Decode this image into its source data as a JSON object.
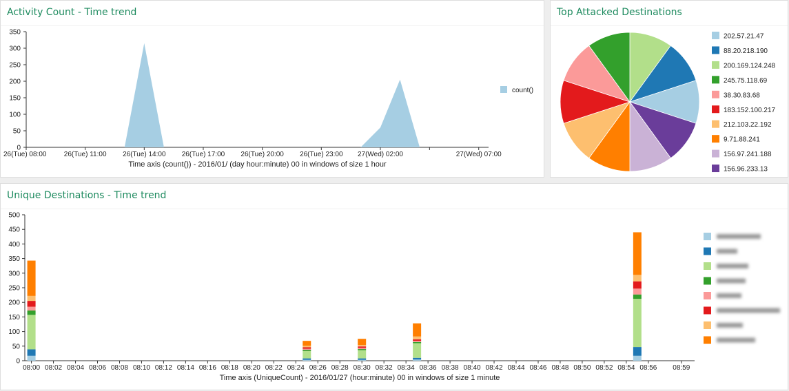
{
  "panels": {
    "activity_title": "Activity Count - Time trend",
    "destinations_title": "Top Attacked Destinations",
    "unique_title": "Unique Destinations - Time trend"
  },
  "chart_data": [
    {
      "type": "area",
      "title": "Activity Count - Time trend",
      "xlabel": "Time axis (count()) - 2016/01/ (day hour:minute) 00 in windows of size 1 hour",
      "ylabel": "",
      "ylim": [
        0,
        350
      ],
      "yticks": [
        0,
        50,
        100,
        150,
        200,
        250,
        300,
        350
      ],
      "x_tick_labels": [
        "26(Tue) 08:00",
        "26(Tue) 11:00",
        "26(Tue) 14:00",
        "26(Tue) 17:00",
        "26(Tue) 20:00",
        "26(Tue) 23:00",
        "27(Wed) 02:00",
        "27(Wed) 07:00"
      ],
      "x_tick_hours": [
        0,
        3,
        6,
        9,
        12,
        15,
        18,
        23
      ],
      "xlim_hours": [
        0,
        23.5
      ],
      "series": [
        {
          "name": "count()",
          "color": "#a6cee3",
          "x_hours": [
            0,
            5,
            6,
            7,
            17,
            18,
            19,
            20,
            23.5
          ],
          "values": [
            0,
            0,
            315,
            0,
            0,
            60,
            205,
            0,
            0
          ]
        }
      ],
      "legend_position": "right"
    },
    {
      "type": "pie",
      "title": "Top Attacked Destinations",
      "labels": [
        "202.57.21.47",
        "88.20.218.190",
        "200.169.124.248",
        "245.75.118.69",
        "38.30.83.68",
        "183.152.100.217",
        "212.103.22.192",
        "9.71.88.241",
        "156.97.241.188",
        "156.96.233.13"
      ],
      "values": [
        10,
        10,
        10,
        10,
        10,
        10,
        10,
        10,
        10,
        10
      ],
      "colors": [
        "#a6cee3",
        "#1f78b4",
        "#b2df8a",
        "#33a02c",
        "#fb9a99",
        "#e31a1c",
        "#fdbf6f",
        "#ff7f00",
        "#cab2d6",
        "#6a3d9a"
      ],
      "slice_order": [
        "200.169.124.248",
        "88.20.218.190",
        "202.57.21.47",
        "156.96.233.13",
        "156.97.241.188",
        "9.71.88.241",
        "212.103.22.192",
        "183.152.100.217",
        "38.30.83.68",
        "245.75.118.69"
      ],
      "legend_position": "right"
    },
    {
      "type": "bar",
      "stacked": true,
      "title": "Unique Destinations - Time trend",
      "xlabel": "Time axis (UniqueCount) - 2016/01/27 (hour:minute) 00 in windows of size 1 minute",
      "ylabel": "",
      "ylim": [
        0,
        500
      ],
      "yticks": [
        0,
        50,
        100,
        150,
        200,
        250,
        300,
        350,
        400,
        450,
        500
      ],
      "x_tick_labels": [
        "08:00",
        "08:02",
        "08:04",
        "08:06",
        "08:08",
        "08:10",
        "08:12",
        "08:14",
        "08:16",
        "08:18",
        "08:20",
        "08:22",
        "08:24",
        "08:26",
        "08:28",
        "08:30",
        "08:32",
        "08:34",
        "08:36",
        "08:38",
        "08:40",
        "08:42",
        "08:44",
        "08:46",
        "08:48",
        "08:50",
        "08:52",
        "08:54",
        "08:56",
        "08:59"
      ],
      "x_tick_minutes": [
        0,
        2,
        4,
        6,
        8,
        10,
        12,
        14,
        16,
        18,
        20,
        22,
        24,
        26,
        28,
        30,
        32,
        34,
        36,
        38,
        40,
        42,
        44,
        46,
        48,
        50,
        52,
        54,
        56,
        59
      ],
      "xlim_minutes": [
        -0.6,
        60.2
      ],
      "bar_minutes": [
        0,
        25,
        30,
        35,
        55
      ],
      "series": [
        {
          "name": "",
          "color": "#a6cee3",
          "values": [
            17,
            3,
            3,
            4,
            17
          ]
        },
        {
          "name": "",
          "color": "#1f78b4",
          "values": [
            22,
            5,
            5,
            6,
            30
          ]
        },
        {
          "name": "",
          "color": "#b2df8a",
          "values": [
            118,
            25,
            28,
            50,
            165
          ]
        },
        {
          "name": "",
          "color": "#33a02c",
          "values": [
            15,
            4,
            4,
            4,
            15
          ]
        },
        {
          "name": "",
          "color": "#fb9a99",
          "values": [
            13,
            4,
            4,
            4,
            20
          ]
        },
        {
          "name": "",
          "color": "#e31a1c",
          "values": [
            20,
            5,
            5,
            5,
            25
          ]
        },
        {
          "name": "",
          "color": "#fdbf6f",
          "values": [
            17,
            5,
            5,
            10,
            22
          ]
        },
        {
          "name": "",
          "color": "#ff7f00",
          "values": [
            121,
            17,
            21,
            45,
            146
          ]
        }
      ],
      "legend_position": "right"
    }
  ]
}
